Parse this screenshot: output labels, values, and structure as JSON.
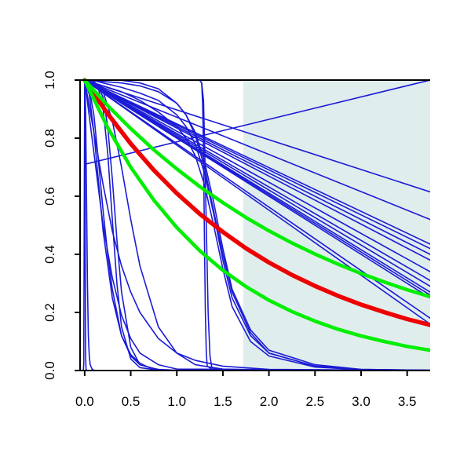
{
  "chart_data": {
    "type": "line",
    "title": "",
    "xlabel": "",
    "ylabel": "",
    "xlim": [
      -0.05,
      3.75
    ],
    "ylim": [
      0,
      1
    ],
    "x_ticks": [
      0.0,
      0.5,
      1.0,
      1.5,
      2.0,
      2.5,
      3.0,
      3.5
    ],
    "x_tick_labels": [
      "0.0",
      "0.5",
      "1.0",
      "1.5",
      "2.0",
      "2.5",
      "3.0",
      "3.5"
    ],
    "y_ticks": [
      0.0,
      0.2,
      0.4,
      0.6,
      0.8,
      1.0
    ],
    "y_tick_labels": [
      "0.0",
      "0.2",
      "0.4",
      "0.6",
      "0.8",
      "1.0"
    ],
    "grid": false,
    "legend": "none",
    "shaded_region": {
      "x_from": 1.72,
      "x_to": 3.75,
      "color": "#e0eded"
    },
    "colors": {
      "blue": "#1b1bd6",
      "red": "#ee0000",
      "green": "#00ee00",
      "axis": "#000000"
    },
    "series": [
      {
        "color": "blue",
        "width": 1.6,
        "x": [
          0,
          3.75
        ],
        "y": [
          1.0,
          0.615
        ]
      },
      {
        "color": "blue",
        "width": 1.6,
        "x": [
          0,
          3.75
        ],
        "y": [
          1.0,
          0.52
        ]
      },
      {
        "color": "blue",
        "width": 1.6,
        "x": [
          0,
          3.75
        ],
        "y": [
          1.0,
          0.435
        ]
      },
      {
        "color": "blue",
        "width": 1.6,
        "x": [
          0,
          3.75
        ],
        "y": [
          1.0,
          0.42
        ]
      },
      {
        "color": "blue",
        "width": 1.6,
        "x": [
          0,
          3.75
        ],
        "y": [
          1.0,
          0.4
        ]
      },
      {
        "color": "blue",
        "width": 1.6,
        "x": [
          0,
          3.75
        ],
        "y": [
          1.0,
          0.38
        ]
      },
      {
        "color": "blue",
        "width": 1.6,
        "x": [
          0,
          3.75
        ],
        "y": [
          1.0,
          0.34
        ]
      },
      {
        "color": "blue",
        "width": 1.6,
        "x": [
          0,
          3.75
        ],
        "y": [
          1.0,
          0.31
        ]
      },
      {
        "color": "blue",
        "width": 1.6,
        "x": [
          0,
          3.75
        ],
        "y": [
          1.0,
          0.29
        ]
      },
      {
        "color": "blue",
        "width": 1.6,
        "x": [
          0,
          3.75
        ],
        "y": [
          1.0,
          0.27
        ]
      },
      {
        "color": "blue",
        "width": 1.6,
        "x": [
          0,
          3.75
        ],
        "y": [
          1.0,
          0.26
        ]
      },
      {
        "color": "blue",
        "width": 1.6,
        "x": [
          0,
          3.75
        ],
        "y": [
          1.0,
          0.25
        ]
      },
      {
        "color": "blue",
        "width": 1.6,
        "x": [
          0,
          3.75
        ],
        "y": [
          1.0,
          0.18
        ]
      },
      {
        "color": "blue",
        "width": 1.6,
        "x": [
          0,
          3.75
        ],
        "y": [
          1.0,
          0.16
        ]
      },
      {
        "color": "blue",
        "width": 1.6,
        "x": [
          0.0,
          3.75
        ],
        "y": [
          0.71,
          1.0
        ]
      },
      {
        "color": "blue",
        "width": 1.6,
        "x": [
          0,
          0.1,
          0.2,
          0.4,
          0.6,
          0.8,
          1.0,
          1.1,
          1.2,
          1.3,
          1.4,
          1.5,
          1.6,
          1.8,
          2.0,
          2.5,
          3.0,
          3.75
        ],
        "y": [
          1.0,
          0.999,
          0.995,
          0.99,
          0.98,
          0.96,
          0.92,
          0.88,
          0.82,
          0.72,
          0.58,
          0.42,
          0.28,
          0.14,
          0.07,
          0.02,
          0.004,
          0.001
        ]
      },
      {
        "color": "blue",
        "width": 1.6,
        "x": [
          0,
          0.1,
          0.2,
          0.4,
          0.6,
          0.8,
          1.0,
          1.1,
          1.2,
          1.3,
          1.4,
          1.5,
          1.6,
          1.8,
          2.0,
          2.5,
          3.0,
          3.75
        ],
        "y": [
          1.0,
          0.998,
          0.99,
          0.975,
          0.955,
          0.93,
          0.88,
          0.84,
          0.78,
          0.68,
          0.54,
          0.38,
          0.25,
          0.12,
          0.06,
          0.015,
          0.004,
          0.001
        ]
      },
      {
        "color": "blue",
        "width": 1.6,
        "x": [
          0,
          0.2,
          0.4,
          0.6,
          0.8,
          1.0,
          1.1,
          1.2,
          1.3,
          1.4,
          1.5,
          1.6,
          1.8,
          2.0,
          2.5,
          3.0,
          3.75
        ],
        "y": [
          1.0,
          0.98,
          0.96,
          0.93,
          0.89,
          0.84,
          0.8,
          0.74,
          0.64,
          0.5,
          0.35,
          0.22,
          0.1,
          0.05,
          0.012,
          0.003,
          0.001
        ]
      },
      {
        "color": "blue",
        "width": 1.6,
        "x": [
          0,
          0.1,
          0.2,
          0.4,
          0.6,
          0.8,
          1.0,
          1.1,
          1.2,
          1.3,
          1.4,
          1.5,
          1.6,
          1.8,
          2.0,
          2.5,
          3.0,
          3.75
        ],
        "y": [
          1.0,
          1.0,
          1.0,
          0.999,
          0.99,
          0.97,
          0.92,
          0.88,
          0.81,
          0.7,
          0.55,
          0.4,
          0.27,
          0.13,
          0.06,
          0.015,
          0.003,
          0.001
        ]
      },
      {
        "color": "blue",
        "width": 1.6,
        "x": [
          0,
          0.2,
          0.4,
          0.6,
          0.8,
          1.0,
          1.1,
          1.2,
          1.25,
          1.27,
          1.29,
          1.3,
          1.32,
          1.34,
          1.36,
          1.38,
          1.5,
          2.0,
          3.75
        ],
        "y": [
          1.0,
          1.0,
          1.0,
          1.0,
          1.0,
          1.0,
          1.0,
          1.0,
          0.999,
          0.99,
          0.93,
          0.8,
          0.5,
          0.2,
          0.05,
          0.01,
          0.001,
          0.0,
          0.0
        ]
      },
      {
        "color": "blue",
        "width": 1.6,
        "x": [
          0,
          0.2,
          0.4,
          0.6,
          0.8,
          1.0,
          1.2,
          1.25,
          1.27,
          1.28,
          1.29,
          1.3,
          1.31,
          1.32,
          1.33,
          1.4,
          2.0,
          3.75
        ],
        "y": [
          1.0,
          1.0,
          1.0,
          1.0,
          1.0,
          1.0,
          1.0,
          0.999,
          0.99,
          0.92,
          0.75,
          0.45,
          0.2,
          0.06,
          0.015,
          0.001,
          0.0,
          0.0
        ]
      },
      {
        "color": "blue",
        "width": 1.6,
        "x": [
          0,
          0.05,
          0.1,
          0.15,
          0.2,
          0.25,
          0.3,
          0.35,
          0.4,
          0.5,
          0.6,
          0.8,
          1.0,
          3.75
        ],
        "y": [
          1.0,
          0.998,
          0.99,
          0.97,
          0.9,
          0.75,
          0.52,
          0.3,
          0.15,
          0.04,
          0.01,
          0.001,
          0.0,
          0.0
        ]
      },
      {
        "color": "blue",
        "width": 1.6,
        "x": [
          0,
          0.05,
          0.1,
          0.15,
          0.2,
          0.25,
          0.3,
          0.35,
          0.4,
          0.5,
          0.6,
          0.8,
          1.0,
          3.75
        ],
        "y": [
          1.0,
          0.999,
          0.995,
          0.98,
          0.94,
          0.84,
          0.66,
          0.45,
          0.27,
          0.08,
          0.02,
          0.002,
          0.0,
          0.0
        ]
      },
      {
        "color": "blue",
        "width": 1.6,
        "x": [
          0,
          0.05,
          0.1,
          0.15,
          0.2,
          0.3,
          0.4,
          0.5,
          0.6,
          0.7,
          0.8,
          1.0,
          3.75
        ],
        "y": [
          1.0,
          0.95,
          0.82,
          0.65,
          0.48,
          0.25,
          0.12,
          0.055,
          0.025,
          0.01,
          0.004,
          0.001,
          0.0
        ]
      },
      {
        "color": "blue",
        "width": 1.6,
        "x": [
          0,
          0.05,
          0.1,
          0.15,
          0.2,
          0.25,
          0.3,
          0.4,
          0.5,
          0.6,
          0.8,
          1.0,
          3.75
        ],
        "y": [
          1.0,
          0.97,
          0.88,
          0.72,
          0.55,
          0.4,
          0.28,
          0.12,
          0.05,
          0.02,
          0.003,
          0.0,
          0.0
        ]
      },
      {
        "color": "blue",
        "width": 1.6,
        "x": [
          0,
          0.1,
          0.2,
          0.3,
          0.4,
          0.5,
          0.6,
          0.8,
          1.0,
          1.2,
          1.5,
          2.0,
          3.75
        ],
        "y": [
          1.0,
          0.82,
          0.64,
          0.48,
          0.36,
          0.27,
          0.2,
          0.11,
          0.06,
          0.035,
          0.015,
          0.004,
          0.0
        ]
      },
      {
        "color": "blue",
        "width": 1.6,
        "x": [
          0,
          0.1,
          0.2,
          0.3,
          0.4,
          0.5,
          0.6,
          0.8,
          1.0,
          1.2,
          1.5,
          2.0,
          3.75
        ],
        "y": [
          1.0,
          0.99,
          0.96,
          0.86,
          0.7,
          0.52,
          0.36,
          0.15,
          0.06,
          0.02,
          0.005,
          0.001,
          0.0
        ]
      },
      {
        "color": "blue",
        "width": 1.6,
        "x": [
          0,
          0.1,
          0.2,
          0.3,
          0.4,
          0.5,
          0.6,
          0.8,
          1.0,
          3.75
        ],
        "y": [
          1.0,
          0.75,
          0.5,
          0.32,
          0.19,
          0.11,
          0.06,
          0.02,
          0.005,
          0.0
        ]
      },
      {
        "color": "blue",
        "width": 1.6,
        "x": [
          -0.02,
          -0.015,
          -0.01,
          -0.005,
          0.0,
          0.005,
          0.01,
          0.015,
          0.02,
          0.05,
          3.75
        ],
        "y": [
          0.0,
          0.0,
          0.02,
          0.5,
          1.0,
          0.5,
          0.05,
          0.005,
          0.0,
          0.0,
          0.0
        ]
      },
      {
        "color": "blue",
        "width": 1.6,
        "x": [
          0,
          0.01,
          0.02,
          0.03,
          0.04,
          0.05,
          0.06,
          0.08,
          0.1,
          0.15,
          3.75
        ],
        "y": [
          1.0,
          0.9,
          0.6,
          0.3,
          0.12,
          0.05,
          0.02,
          0.005,
          0.001,
          0.0,
          0.0
        ]
      },
      {
        "color": "red",
        "width": 5.5,
        "x": [
          0,
          0.25,
          0.5,
          0.75,
          1.0,
          1.25,
          1.5,
          1.75,
          2.0,
          2.25,
          2.5,
          2.75,
          3.0,
          3.25,
          3.5,
          3.75
        ],
        "y": [
          1.0,
          0.884,
          0.781,
          0.69,
          0.61,
          0.539,
          0.477,
          0.421,
          0.372,
          0.329,
          0.291,
          0.257,
          0.227,
          0.201,
          0.177,
          0.157
        ]
      },
      {
        "color": "green",
        "width": 4.5,
        "x": [
          0,
          0.25,
          0.5,
          0.75,
          1.0,
          1.25,
          1.5,
          1.75,
          2.0,
          2.25,
          2.5,
          2.75,
          3.0,
          3.25,
          3.5,
          3.75
        ],
        "y": [
          1.0,
          0.912,
          0.833,
          0.76,
          0.694,
          0.633,
          0.578,
          0.527,
          0.481,
          0.439,
          0.401,
          0.366,
          0.334,
          0.305,
          0.278,
          0.254
        ]
      },
      {
        "color": "green",
        "width": 4.5,
        "x": [
          0,
          0.25,
          0.5,
          0.75,
          1.0,
          1.25,
          1.5,
          1.75,
          2.0,
          2.25,
          2.5,
          2.75,
          3.0,
          3.25,
          3.5,
          3.75
        ],
        "y": [
          1.0,
          0.836,
          0.7,
          0.587,
          0.492,
          0.412,
          0.345,
          0.289,
          0.242,
          0.203,
          0.17,
          0.142,
          0.119,
          0.1,
          0.083,
          0.07
        ]
      }
    ]
  }
}
